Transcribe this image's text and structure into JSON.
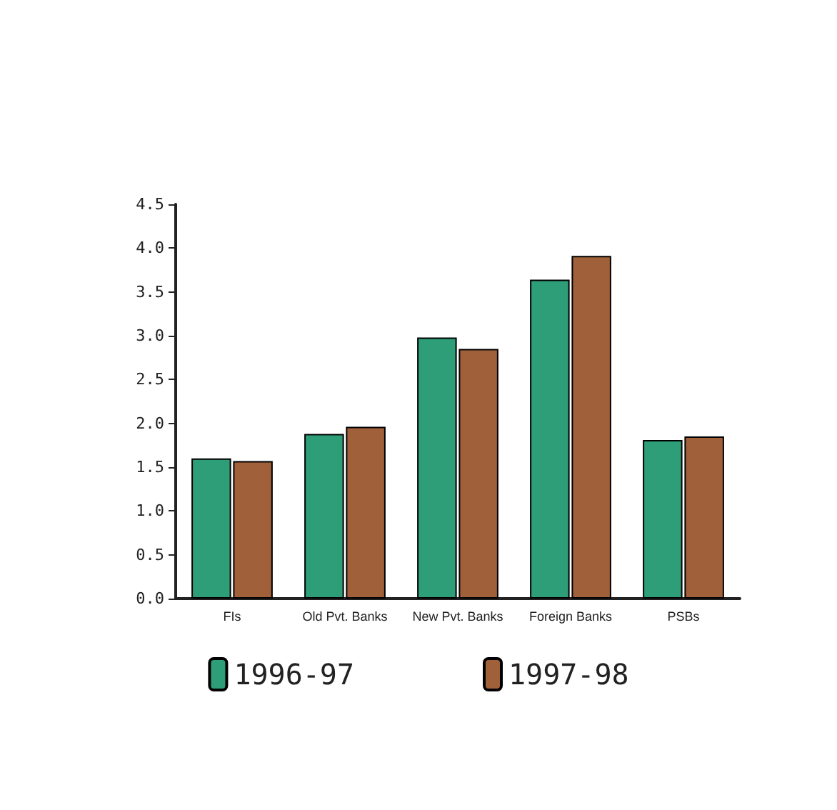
{
  "chart_data": {
    "type": "bar",
    "categories": [
      "FIs",
      "Old Pvt. Banks",
      "New Pvt. Banks",
      "Foreign Banks",
      "PSBs"
    ],
    "series": [
      {
        "name": "1996-97",
        "color": "#2e9e78",
        "values": [
          1.6,
          1.88,
          2.98,
          3.64,
          1.81
        ]
      },
      {
        "name": "1997-98",
        "color": "#a0603a",
        "values": [
          1.57,
          1.96,
          2.85,
          3.91,
          1.85
        ]
      }
    ],
    "ylim": [
      0,
      4.5
    ],
    "yticks": [
      {
        "value": 0,
        "label": "0.0"
      },
      {
        "value": 0.5,
        "label": "0.5"
      },
      {
        "value": 1,
        "label": "1.0"
      },
      {
        "value": 1.5,
        "label": "1.5"
      },
      {
        "value": 2,
        "label": "2.0"
      },
      {
        "value": 2.5,
        "label": "2.5"
      },
      {
        "value": 3,
        "label": "3.0"
      },
      {
        "value": 3.5,
        "label": "3.5"
      },
      {
        "value": 4,
        "label": "4.0"
      },
      {
        "value": 4.5,
        "label": "4.5"
      }
    ],
    "grid": false,
    "legend": "bottom"
  }
}
